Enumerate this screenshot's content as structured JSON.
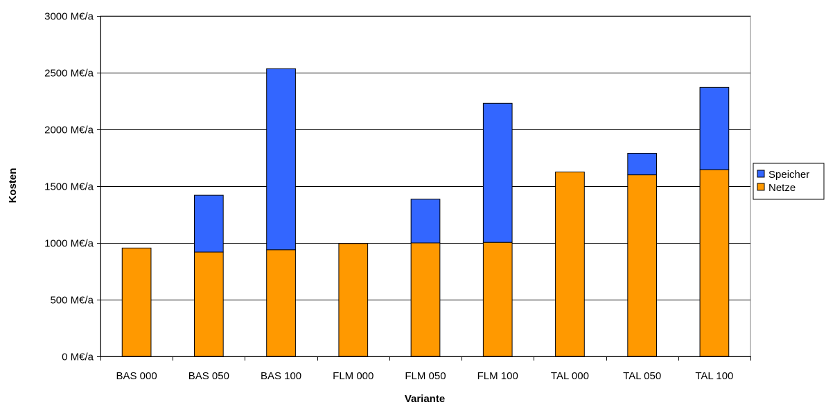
{
  "chart_data": {
    "type": "bar",
    "stacked": true,
    "title": "",
    "xlabel": "Variante",
    "ylabel": "Kosten",
    "ylim": [
      0,
      3000
    ],
    "yticks": [
      0,
      500,
      1000,
      1500,
      2000,
      2500,
      3000
    ],
    "y_unit_suffix": " M€/a",
    "grid": true,
    "legend_position": "right",
    "categories": [
      "BAS 000",
      "BAS 050",
      "BAS 100",
      "FLM 000",
      "FLM 050",
      "FLM 100",
      "TAL 000",
      "TAL 050",
      "TAL 100"
    ],
    "series": [
      {
        "name": "Netze",
        "color": "#FF9900",
        "values": [
          955,
          920,
          940,
          995,
          1000,
          1005,
          1625,
          1600,
          1645
        ]
      },
      {
        "name": "Speicher",
        "color": "#3366FF",
        "values": [
          0,
          500,
          1595,
          0,
          385,
          1225,
          0,
          190,
          725
        ]
      }
    ],
    "legend_order": [
      "Speicher",
      "Netze"
    ]
  }
}
